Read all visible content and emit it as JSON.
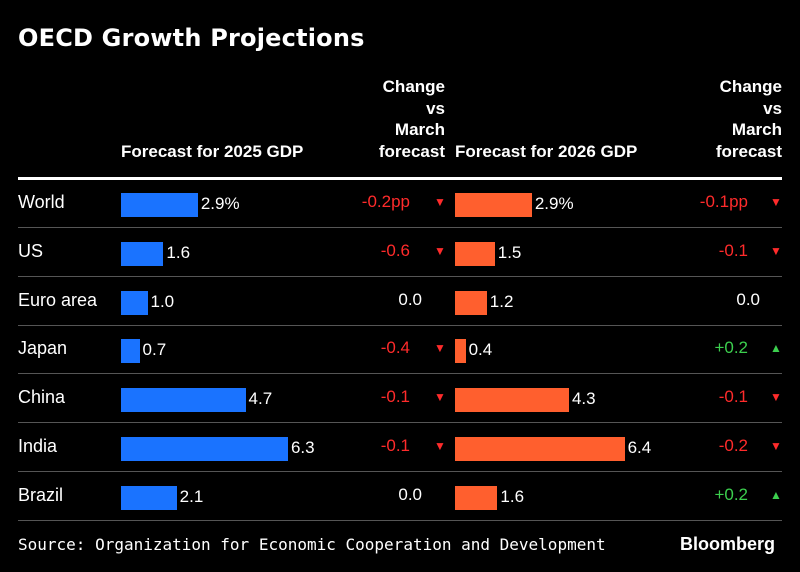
{
  "title": "OECD Growth Projections",
  "headers": {
    "forecast_2025": "Forecast for 2025 GDP",
    "change_2025": [
      "Change",
      "vs",
      "March",
      "forecast"
    ],
    "forecast_2026": "Forecast for 2026 GDP",
    "change_2026": [
      "Change",
      "vs",
      "March",
      "forecast"
    ]
  },
  "colors": {
    "bar_2025": "#1a73ff",
    "bar_2026": "#ff5f2e",
    "negative": "#ff2b2b",
    "positive": "#3ccf4e"
  },
  "chart_data": {
    "type": "bar",
    "orientation": "horizontal",
    "categories": [
      "World",
      "US",
      "Euro area",
      "Japan",
      "China",
      "India",
      "Brazil"
    ],
    "series": [
      {
        "name": "Forecast for 2025 GDP",
        "values": [
          2.9,
          1.6,
          1.0,
          0.7,
          4.7,
          6.3,
          2.1
        ],
        "labels": [
          "2.9%",
          "1.6",
          "1.0",
          "0.7",
          "4.7",
          "6.3",
          "2.1"
        ]
      },
      {
        "name": "Forecast for 2026 GDP",
        "values": [
          2.9,
          1.5,
          1.2,
          0.4,
          4.3,
          6.4,
          1.6
        ],
        "labels": [
          "2.9%",
          "1.5",
          "1.2",
          "0.4",
          "4.3",
          "6.4",
          "1.6"
        ]
      }
    ],
    "change_2025": [
      {
        "label": "-0.2pp",
        "dir": "down"
      },
      {
        "label": "-0.6",
        "dir": "down"
      },
      {
        "label": "0.0",
        "dir": "none"
      },
      {
        "label": "-0.4",
        "dir": "down"
      },
      {
        "label": "-0.1",
        "dir": "down"
      },
      {
        "label": "-0.1",
        "dir": "down"
      },
      {
        "label": "0.0",
        "dir": "none"
      }
    ],
    "change_2026": [
      {
        "label": "-0.1pp",
        "dir": "down"
      },
      {
        "label": "-0.1",
        "dir": "down"
      },
      {
        "label": "0.0",
        "dir": "none"
      },
      {
        "label": "+0.2",
        "dir": "up"
      },
      {
        "label": "-0.1",
        "dir": "down"
      },
      {
        "label": "-0.2",
        "dir": "down"
      },
      {
        "label": "+0.2",
        "dir": "up"
      }
    ]
  },
  "source": "Source: Organization for Economic Cooperation and Development",
  "brand": "Bloomberg"
}
